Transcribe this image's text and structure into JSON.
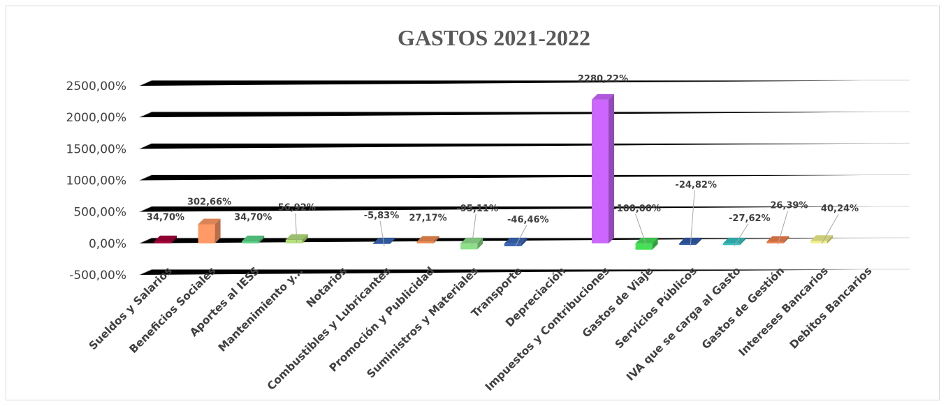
{
  "chart_data": {
    "type": "bar",
    "title": "GASTOS 2021-2022",
    "xlabel": "",
    "ylabel": "",
    "ylim": [
      -500,
      2500
    ],
    "yticks": [
      2500,
      2000,
      1500,
      1000,
      500,
      0,
      -500
    ],
    "ytick_labels": [
      "2500,00%",
      "2000,00%",
      "1500,00%",
      "1000,00%",
      "500,00%",
      "0,00%",
      "-500,00%"
    ],
    "grid": true,
    "legend": "none",
    "categories": [
      "Sueldos y Salarios",
      "Beneficios Sociales",
      "Aportes al IESS",
      "Mantenimiento y...",
      "Notarios",
      "Combustibles y Lubricantes",
      "Promoción y Publicidad",
      "Suministros y Materiales",
      "Transporte",
      "Depreciación",
      "Impuestos y Contribuciones",
      "Gastos de Viaje",
      "Servicios Públicos",
      "IVA que se carga al Gasto",
      "Gastos de Gestión",
      "Intereses Bancarios",
      "Debitos Bancarios"
    ],
    "values": [
      34.7,
      302.66,
      34.7,
      56.92,
      null,
      -5.83,
      27.17,
      -95.11,
      -46.46,
      null,
      2280.22,
      -100.0,
      -24.82,
      -27.62,
      26.39,
      40.24,
      null
    ],
    "data_labels": [
      "34,70%",
      "302,66%",
      "34,70%",
      "56,92%",
      "",
      "-5,83%",
      "27,17%",
      "-95,11%",
      "-46,46%",
      "",
      "2280,22%",
      "-100,00%",
      "-24,82%",
      "-27,62%",
      "26,39%",
      "40,24%",
      ""
    ],
    "colors": [
      "#a6003a",
      "#ff9966",
      "#5cd68a",
      "#b3e07a",
      "#3a66b5",
      "#3a66b5",
      "#f08a50",
      "#8ee08a",
      "#3a66b5",
      "#3a66b5",
      "#cc66ff",
      "#44e055",
      "#2f5aa8",
      "#33c0c0",
      "#f0804a",
      "#f0f08a",
      "#3a66b5"
    ]
  }
}
